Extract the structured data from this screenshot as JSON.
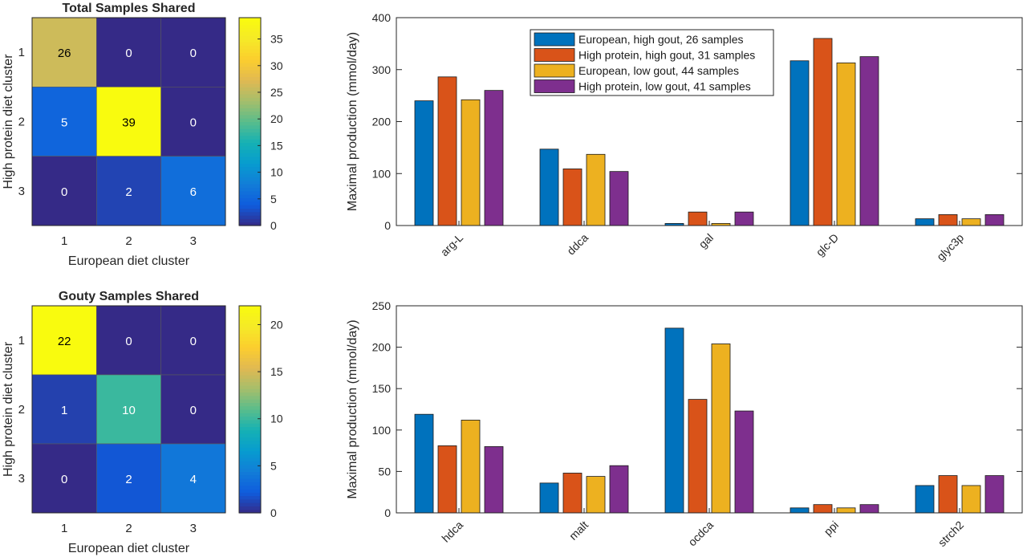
{
  "chart_data": [
    {
      "type": "heatmap",
      "title": "Total Samples Shared",
      "xlabel": "European diet cluster",
      "ylabel": "High protein diet cluster",
      "x_categories": [
        "1",
        "2",
        "3"
      ],
      "y_categories": [
        "1",
        "2",
        "3"
      ],
      "values": [
        [
          26,
          0,
          0
        ],
        [
          5,
          39,
          0
        ],
        [
          0,
          2,
          6
        ]
      ],
      "colorbar": {
        "range": [
          0,
          39
        ],
        "ticks": [
          "0",
          "5",
          "10",
          "15",
          "20",
          "25",
          "30",
          "35"
        ],
        "tick_values": [
          0,
          5,
          10,
          15,
          20,
          25,
          30,
          35
        ]
      },
      "colormap": "parula"
    },
    {
      "type": "bar",
      "categories": [
        "arg-L",
        "ddca",
        "gal",
        "glc-D",
        "glyc3p"
      ],
      "ylabel": "Maximal production (mmol/day)",
      "ylim": [
        0,
        400
      ],
      "yticks": [
        "0",
        "100",
        "200",
        "300",
        "400"
      ],
      "ytick_values": [
        0,
        100,
        200,
        300,
        400
      ],
      "legend_position": "top-center",
      "series": [
        {
          "name": "European, high gout,  26 samples",
          "color": "#0072BD",
          "values": [
            240,
            147,
            4,
            317,
            13
          ]
        },
        {
          "name": "High protein, high gout,  31 samples",
          "color": "#D95319",
          "values": [
            286,
            109,
            26,
            360,
            21
          ]
        },
        {
          "name": "European, low gout,  44 samples",
          "color": "#EDB120",
          "values": [
            242,
            137,
            4,
            313,
            13
          ]
        },
        {
          "name": "High protein, low gout,  41 samples",
          "color": "#7E2F8E",
          "values": [
            260,
            104,
            26,
            325,
            21
          ]
        }
      ]
    },
    {
      "type": "heatmap",
      "title": "Gouty Samples Shared",
      "xlabel": "European diet cluster",
      "ylabel": "High protein diet cluster",
      "x_categories": [
        "1",
        "2",
        "3"
      ],
      "y_categories": [
        "1",
        "2",
        "3"
      ],
      "values": [
        [
          22,
          0,
          0
        ],
        [
          1,
          10,
          0
        ],
        [
          0,
          2,
          4
        ]
      ],
      "colorbar": {
        "range": [
          0,
          22
        ],
        "ticks": [
          "0",
          "5",
          "10",
          "15",
          "20"
        ],
        "tick_values": [
          0,
          5,
          10,
          15,
          20
        ]
      },
      "colormap": "parula"
    },
    {
      "type": "bar",
      "categories": [
        "hdca",
        "malt",
        "ocdca",
        "ppi",
        "strch2"
      ],
      "ylabel": "Maximal production (mmol/day)",
      "ylim": [
        0,
        250
      ],
      "yticks": [
        "0",
        "50",
        "100",
        "150",
        "200",
        "250"
      ],
      "ytick_values": [
        0,
        50,
        100,
        150,
        200,
        250
      ],
      "series": [
        {
          "name": "European, high gout,  26 samples",
          "color": "#0072BD",
          "values": [
            119,
            36,
            223,
            6,
            33
          ]
        },
        {
          "name": "High protein, high gout,  31 samples",
          "color": "#D95319",
          "values": [
            81,
            48,
            137,
            10,
            45
          ]
        },
        {
          "name": "European, low gout,  44 samples",
          "color": "#EDB120",
          "values": [
            112,
            44,
            204,
            6,
            33
          ]
        },
        {
          "name": "High protein, low gout,  41 samples",
          "color": "#7E2F8E",
          "values": [
            80,
            57,
            123,
            10,
            45
          ]
        }
      ]
    }
  ]
}
